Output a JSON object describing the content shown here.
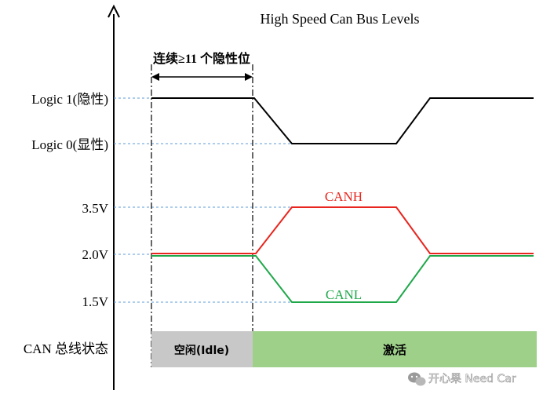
{
  "title": "High Speed Can Bus Levels",
  "annotation": "连续≥11 个隐性位",
  "y_labels": {
    "logic1": "Logic 1(隐性)",
    "logic0": "Logic 0(显性)",
    "v35": "3.5V",
    "v20": "2.0V",
    "v15": "1.5V",
    "bus_state": "CAN 总线状态"
  },
  "signals": {
    "canh_label": "CANH",
    "canl_label": "CANL"
  },
  "states": {
    "idle": "空闲(Idle)",
    "active": "激活"
  },
  "watermark": "开心果 Need Car",
  "colors": {
    "canh": "#e8261f",
    "canl": "#1fa84a",
    "logic": "#000000",
    "dashed": "#5b9bd5",
    "idle_fill": "#c8c8c8",
    "active_fill": "#9fd08a"
  }
}
